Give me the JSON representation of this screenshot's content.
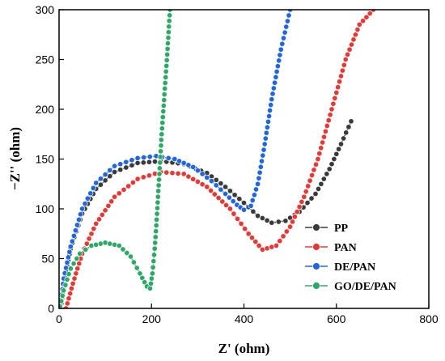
{
  "chart_data": {
    "type": "line",
    "title": "",
    "xlabel": "Z' (ohm)",
    "ylabel": "−Z'' (ohm)",
    "xlim": [
      0,
      800
    ],
    "ylim": [
      0,
      300
    ],
    "xticks": [
      "0",
      "200",
      "400",
      "600",
      "800"
    ],
    "yticks": [
      "0",
      "50",
      "100",
      "150",
      "200",
      "250",
      "300"
    ],
    "grid": false,
    "legend_position": "bottom-right",
    "series": [
      {
        "name": "PP",
        "color": "#3a3a3a",
        "marker": "circle",
        "points": [
          [
            5,
            5
          ],
          [
            10,
            25
          ],
          [
            25,
            60
          ],
          [
            50,
            95
          ],
          [
            80,
            120
          ],
          [
            120,
            137
          ],
          [
            170,
            146
          ],
          [
            220,
            148
          ],
          [
            270,
            145
          ],
          [
            320,
            136
          ],
          [
            360,
            122
          ],
          [
            400,
            106
          ],
          [
            430,
            93
          ],
          [
            460,
            86
          ],
          [
            490,
            88
          ],
          [
            520,
            97
          ],
          [
            555,
            115
          ],
          [
            585,
            140
          ],
          [
            610,
            165
          ],
          [
            632,
            188
          ]
        ]
      },
      {
        "name": "PAN",
        "color": "#e53935",
        "marker": "circle",
        "points": [
          [
            15,
            0
          ],
          [
            30,
            25
          ],
          [
            50,
            55
          ],
          [
            80,
            85
          ],
          [
            120,
            112
          ],
          [
            170,
            130
          ],
          [
            220,
            137
          ],
          [
            270,
            135
          ],
          [
            320,
            122
          ],
          [
            370,
            100
          ],
          [
            410,
            75
          ],
          [
            440,
            59
          ],
          [
            470,
            63
          ],
          [
            500,
            82
          ],
          [
            530,
            112
          ],
          [
            560,
            150
          ],
          [
            590,
            200
          ],
          [
            620,
            250
          ],
          [
            650,
            285
          ],
          [
            680,
            300
          ]
        ]
      },
      {
        "name": "DE/PAN",
        "color": "#2266dd",
        "marker": "circle",
        "points": [
          [
            3,
            3
          ],
          [
            10,
            30
          ],
          [
            25,
            62
          ],
          [
            50,
            100
          ],
          [
            80,
            126
          ],
          [
            120,
            143
          ],
          [
            170,
            151
          ],
          [
            210,
            153
          ],
          [
            250,
            150
          ],
          [
            290,
            142
          ],
          [
            330,
            128
          ],
          [
            360,
            115
          ],
          [
            385,
            104
          ],
          [
            400,
            99
          ],
          [
            415,
            103
          ],
          [
            430,
            125
          ],
          [
            445,
            165
          ],
          [
            460,
            210
          ],
          [
            480,
            260
          ],
          [
            500,
            300
          ]
        ]
      },
      {
        "name": "GO/DE/PAN",
        "color": "#2ea866",
        "marker": "circle",
        "points": [
          [
            2,
            2
          ],
          [
            10,
            18
          ],
          [
            25,
            40
          ],
          [
            45,
            55
          ],
          [
            70,
            63
          ],
          [
            100,
            66
          ],
          [
            130,
            63
          ],
          [
            155,
            52
          ],
          [
            175,
            35
          ],
          [
            190,
            22
          ],
          [
            197,
            20
          ],
          [
            202,
            35
          ],
          [
            207,
            60
          ],
          [
            212,
            95
          ],
          [
            217,
            135
          ],
          [
            222,
            175
          ],
          [
            228,
            215
          ],
          [
            234,
            255
          ],
          [
            240,
            300
          ]
        ]
      }
    ]
  }
}
